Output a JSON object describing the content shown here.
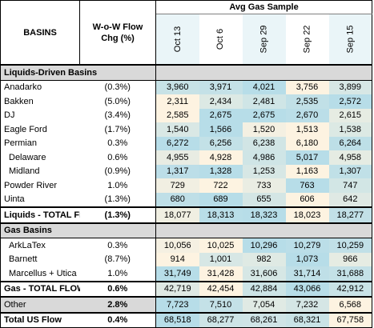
{
  "header": {
    "basins": "BASINS",
    "chg_line1": "W-o-W Flow",
    "chg_line2": "Chg (%)",
    "sample": "Avg Gas Sample",
    "dates": [
      "Oct 13",
      "Oct 6",
      "Sep 29",
      "Sep 22",
      "Sep 15"
    ]
  },
  "sections": {
    "liquids": "Liquids-Driven Basins",
    "gas": "Gas Basins"
  },
  "liquids_rows": [
    {
      "name": "Anadarko",
      "chg": "(0.3%)",
      "vals": [
        "3,960",
        "3,971",
        "4,021",
        "3,756",
        "3,899"
      ]
    },
    {
      "name": "Bakken",
      "chg": "(5.0%)",
      "vals": [
        "2,311",
        "2,434",
        "2,481",
        "2,535",
        "2,572"
      ]
    },
    {
      "name": "DJ",
      "chg": "(3.4%)",
      "vals": [
        "2,585",
        "2,675",
        "2,675",
        "2,670",
        "2,615"
      ]
    },
    {
      "name": "Eagle Ford",
      "chg": "(1.7%)",
      "vals": [
        "1,540",
        "1,566",
        "1,520",
        "1,513",
        "1,538"
      ]
    },
    {
      "name": "Permian",
      "chg": "0.3%",
      "vals": [
        "6,272",
        "6,256",
        "6,238",
        "6,180",
        "6,264"
      ]
    },
    {
      "name": "Delaware",
      "chg": "0.6%",
      "vals": [
        "4,955",
        "4,928",
        "4,986",
        "5,017",
        "4,958"
      ]
    },
    {
      "name": "Midland",
      "chg": "(0.9%)",
      "vals": [
        "1,317",
        "1,328",
        "1,253",
        "1,163",
        "1,307"
      ]
    },
    {
      "name": "Powder River",
      "chg": "1.0%",
      "vals": [
        "729",
        "722",
        "733",
        "763",
        "747"
      ]
    },
    {
      "name": "Uinta",
      "chg": "(1.3%)",
      "vals": [
        "680",
        "689",
        "655",
        "606",
        "642"
      ]
    }
  ],
  "liquids_total": {
    "name": "Liquids - TOTAL FLOW",
    "chg": "(1.3%)",
    "vals": [
      "18,077",
      "18,313",
      "18,323",
      "18,023",
      "18,277"
    ]
  },
  "gas_rows": [
    {
      "name": "ArkLaTex",
      "chg": "0.3%",
      "vals": [
        "10,056",
        "10,025",
        "10,296",
        "10,279",
        "10,259"
      ]
    },
    {
      "name": "Barnett",
      "chg": "(8.7%)",
      "vals": [
        "914",
        "1,001",
        "982",
        "1,073",
        "966"
      ]
    },
    {
      "name": "Marcellus + Utica",
      "chg": "1.0%",
      "vals": [
        "31,749",
        "31,428",
        "31,606",
        "31,714",
        "31,688"
      ]
    }
  ],
  "gas_total": {
    "name": "Gas - TOTAL FLOW",
    "chg": "0.6%",
    "vals": [
      "42,719",
      "42,454",
      "42,884",
      "43,066",
      "42,912"
    ]
  },
  "other": {
    "name": "Other",
    "chg": "2.8%",
    "vals": [
      "7,723",
      "7,510",
      "7,054",
      "7,232",
      "6,568"
    ]
  },
  "total_us": {
    "name": "Total US Flow",
    "chg": "0.4%",
    "vals": [
      "68,518",
      "68,277",
      "68,261",
      "68,321",
      "67,758"
    ]
  },
  "colors": {
    "section_fill": "#d9d9d9",
    "heat_blue": "#b7dde8",
    "heat_light": "#fdf3e1",
    "border": "#000000"
  }
}
